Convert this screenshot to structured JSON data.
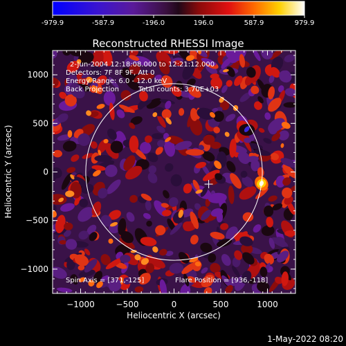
{
  "colorbar": {
    "ticks": [
      "-979.9",
      "-587.9",
      "-196.0",
      "196.0",
      "587.9",
      "979.9"
    ],
    "min": -979.9,
    "max": 979.9
  },
  "chart_data": {
    "type": "heatmap",
    "title": "Reconstructed RHESSI Image",
    "xlabel": "Heliocentric X (arcsec)",
    "ylabel": "Heliocentric Y (arcsec)",
    "xlim": [
      -1300,
      1300
    ],
    "ylim": [
      -1250,
      1250
    ],
    "xticks": [
      -1000,
      -500,
      0,
      500,
      1000
    ],
    "yticks": [
      1000,
      500,
      0,
      -500,
      -1000
    ],
    "xtick_labels": [
      "−1000",
      "−500",
      "0",
      "500",
      "1000"
    ],
    "ytick_labels": [
      "1000",
      "500",
      "0",
      "−500",
      "−1000"
    ],
    "solar_disk": {
      "center": [
        0,
        0
      ],
      "radius": 945
    },
    "spin_axis_marker": [
      371,
      -125
    ],
    "flare_source": [
      936,
      -118
    ],
    "annotations": {
      "time": "2-Jun-2004 12:18:08.000 to 12:21:12.000",
      "detectors": "Detectors: 7F 8F 9F, Att 0",
      "energy": "Energy Range: 6.0 - 12.0 keV",
      "method": "Back Projection",
      "counts": "Total counts: 3.70E+03",
      "spin_axis": "Spin Axis = [371,-125]",
      "flare_position": "Flare Position = [936,-118]"
    },
    "colormap": "rainbow (blue-purple-red-orange-yellow-white)"
  },
  "footer": {
    "timestamp": "1-May-2022 08:20"
  }
}
